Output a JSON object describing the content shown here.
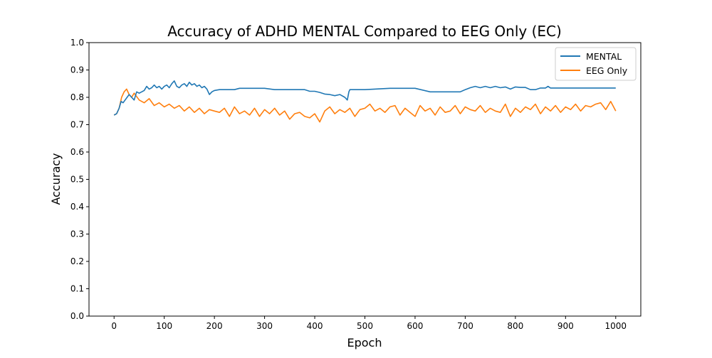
{
  "chart_data": {
    "type": "line",
    "title": "Accuracy of ADHD MENTAL Compared to EEG Only (EC)",
    "xlabel": "Epoch",
    "ylabel": "Accuracy",
    "xlim": [
      -50,
      1050
    ],
    "ylim": [
      0.0,
      1.0
    ],
    "x_ticks": [
      0,
      100,
      200,
      300,
      400,
      500,
      600,
      700,
      800,
      900,
      1000
    ],
    "y_ticks": [
      0.0,
      0.1,
      0.2,
      0.3,
      0.4,
      0.5,
      0.6,
      0.7,
      0.8,
      0.9,
      1.0
    ],
    "x_tick_labels": [
      "0",
      "100",
      "200",
      "300",
      "400",
      "500",
      "600",
      "700",
      "800",
      "900",
      "1000"
    ],
    "y_tick_labels": [
      "0.0",
      "0.1",
      "0.2",
      "0.3",
      "0.4",
      "0.5",
      "0.6",
      "0.7",
      "0.8",
      "0.9",
      "1.0"
    ],
    "grid": false,
    "legend": {
      "position": "top-right",
      "entries": [
        "MENTAL",
        "EEG Only"
      ]
    },
    "series": [
      {
        "name": "MENTAL",
        "color": "#1f77b4",
        "x": [
          0,
          5,
          10,
          14,
          18,
          22,
          26,
          30,
          35,
          40,
          45,
          50,
          55,
          60,
          65,
          70,
          75,
          80,
          85,
          90,
          95,
          100,
          105,
          110,
          115,
          120,
          125,
          130,
          135,
          140,
          145,
          150,
          155,
          160,
          165,
          170,
          175,
          180,
          185,
          190,
          195,
          200,
          210,
          220,
          240,
          250,
          260,
          280,
          300,
          320,
          340,
          360,
          380,
          390,
          400,
          410,
          420,
          430,
          440,
          450,
          460,
          465,
          468,
          470,
          480,
          500,
          550,
          600,
          630,
          650,
          690,
          700,
          710,
          720,
          730,
          740,
          750,
          760,
          770,
          780,
          790,
          800,
          810,
          820,
          830,
          840,
          850,
          860,
          865,
          870,
          880,
          900,
          950,
          1000
        ],
        "y": [
          0.735,
          0.74,
          0.76,
          0.785,
          0.78,
          0.79,
          0.8,
          0.81,
          0.8,
          0.79,
          0.82,
          0.815,
          0.82,
          0.825,
          0.84,
          0.83,
          0.835,
          0.845,
          0.835,
          0.84,
          0.83,
          0.84,
          0.845,
          0.835,
          0.85,
          0.86,
          0.84,
          0.835,
          0.845,
          0.85,
          0.84,
          0.855,
          0.845,
          0.85,
          0.84,
          0.845,
          0.835,
          0.84,
          0.83,
          0.81,
          0.82,
          0.825,
          0.828,
          0.828,
          0.828,
          0.833,
          0.833,
          0.833,
          0.833,
          0.828,
          0.828,
          0.828,
          0.828,
          0.822,
          0.822,
          0.818,
          0.812,
          0.81,
          0.806,
          0.81,
          0.8,
          0.79,
          0.82,
          0.828,
          0.828,
          0.828,
          0.833,
          0.833,
          0.82,
          0.82,
          0.82,
          0.828,
          0.835,
          0.84,
          0.835,
          0.84,
          0.835,
          0.84,
          0.835,
          0.838,
          0.83,
          0.838,
          0.836,
          0.836,
          0.828,
          0.828,
          0.834,
          0.834,
          0.84,
          0.834,
          0.834,
          0.834,
          0.834,
          0.834
        ]
      },
      {
        "name": "EEG Only",
        "color": "#ff7f0e",
        "x": [
          0,
          5,
          10,
          15,
          20,
          25,
          30,
          35,
          40,
          50,
          60,
          70,
          80,
          90,
          100,
          110,
          120,
          130,
          140,
          150,
          160,
          170,
          180,
          190,
          200,
          210,
          220,
          230,
          240,
          250,
          260,
          270,
          280,
          290,
          300,
          310,
          320,
          330,
          340,
          350,
          360,
          370,
          380,
          390,
          400,
          410,
          420,
          430,
          440,
          450,
          460,
          470,
          480,
          490,
          500,
          510,
          520,
          530,
          540,
          550,
          560,
          570,
          580,
          590,
          600,
          610,
          620,
          630,
          640,
          650,
          660,
          670,
          680,
          690,
          700,
          710,
          720,
          730,
          740,
          750,
          760,
          770,
          780,
          790,
          800,
          810,
          820,
          830,
          840,
          850,
          860,
          870,
          880,
          890,
          900,
          910,
          920,
          930,
          940,
          950,
          960,
          970,
          980,
          990,
          1000
        ],
        "y": [
          0.735,
          0.74,
          0.76,
          0.8,
          0.82,
          0.83,
          0.81,
          0.8,
          0.815,
          0.79,
          0.78,
          0.795,
          0.77,
          0.78,
          0.765,
          0.775,
          0.76,
          0.77,
          0.75,
          0.765,
          0.745,
          0.76,
          0.74,
          0.755,
          0.75,
          0.745,
          0.76,
          0.73,
          0.765,
          0.74,
          0.75,
          0.735,
          0.76,
          0.73,
          0.755,
          0.74,
          0.76,
          0.735,
          0.75,
          0.72,
          0.74,
          0.745,
          0.73,
          0.725,
          0.74,
          0.71,
          0.75,
          0.765,
          0.74,
          0.755,
          0.745,
          0.76,
          0.73,
          0.755,
          0.76,
          0.775,
          0.75,
          0.76,
          0.745,
          0.765,
          0.77,
          0.735,
          0.76,
          0.745,
          0.73,
          0.77,
          0.75,
          0.76,
          0.735,
          0.765,
          0.745,
          0.75,
          0.77,
          0.74,
          0.765,
          0.755,
          0.75,
          0.77,
          0.745,
          0.76,
          0.75,
          0.745,
          0.775,
          0.73,
          0.76,
          0.745,
          0.765,
          0.755,
          0.775,
          0.74,
          0.765,
          0.75,
          0.77,
          0.745,
          0.765,
          0.755,
          0.775,
          0.75,
          0.77,
          0.765,
          0.775,
          0.78,
          0.755,
          0.785,
          0.75
        ]
      }
    ]
  }
}
